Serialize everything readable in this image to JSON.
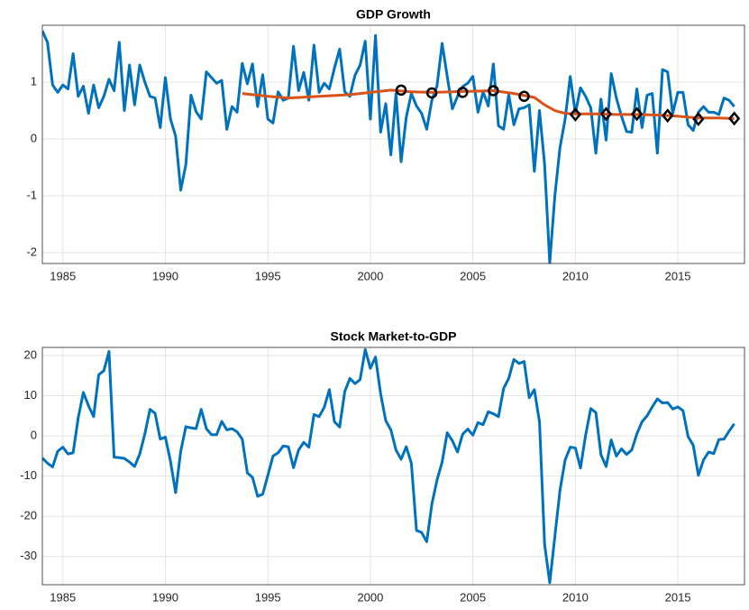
{
  "chart_data": [
    {
      "type": "line",
      "title": "GDP Growth",
      "x": [
        1984,
        1984.25,
        1984.5,
        1984.75,
        1985,
        1985.25,
        1985.5,
        1985.75,
        1986,
        1986.25,
        1986.5,
        1986.75,
        1987,
        1987.25,
        1987.5,
        1987.75,
        1988,
        1988.25,
        1988.5,
        1988.75,
        1989,
        1989.25,
        1989.5,
        1989.75,
        1990,
        1990.25,
        1990.5,
        1990.75,
        1991,
        1991.25,
        1991.5,
        1991.75,
        1992,
        1992.25,
        1992.5,
        1992.75,
        1993,
        1993.25,
        1993.5,
        1993.75,
        1994,
        1994.25,
        1994.5,
        1994.75,
        1995,
        1995.25,
        1995.5,
        1995.75,
        1996,
        1996.25,
        1996.5,
        1996.75,
        1997,
        1997.25,
        1997.5,
        1997.75,
        1998,
        1998.25,
        1998.5,
        1998.75,
        1999,
        1999.25,
        1999.5,
        1999.75,
        2000,
        2000.25,
        2000.5,
        2000.75,
        2001,
        2001.25,
        2001.5,
        2001.75,
        2002,
        2002.25,
        2002.5,
        2002.75,
        2003,
        2003.25,
        2003.5,
        2003.75,
        2004,
        2004.25,
        2004.5,
        2004.75,
        2005,
        2005.25,
        2005.5,
        2005.75,
        2006,
        2006.25,
        2006.5,
        2006.75,
        2007,
        2007.25,
        2007.5,
        2007.75,
        2008,
        2008.25,
        2008.5,
        2008.75,
        2009,
        2009.25,
        2009.5,
        2009.75,
        2010,
        2010.25,
        2010.5,
        2010.75,
        2011,
        2011.25,
        2011.5,
        2011.75,
        2012,
        2012.25,
        2012.5,
        2012.75,
        2013,
        2013.25,
        2013.5,
        2013.75,
        2014,
        2014.25,
        2014.5,
        2014.75,
        2015,
        2015.25,
        2015.5,
        2015.75,
        2016,
        2016.25,
        2016.5,
        2016.75,
        2017,
        2017.25,
        2017.5,
        2017.75
      ],
      "xlim": [
        1984,
        2018.25
      ],
      "xticks": [
        1985,
        1990,
        1995,
        2000,
        2005,
        2010,
        2015
      ],
      "ylim": [
        -2.19,
        2
      ],
      "yticks": [
        -2,
        -1,
        0,
        1
      ],
      "grid": true,
      "series": [
        {
          "color": "#0072bd",
          "style": "line",
          "values": [
            1.9,
            1.7,
            0.95,
            0.82,
            0.95,
            0.88,
            1.5,
            0.75,
            0.93,
            0.45,
            0.95,
            0.55,
            0.75,
            1.05,
            0.85,
            1.7,
            0.5,
            1.3,
            0.6,
            1.3,
            1.0,
            0.75,
            0.72,
            0.2,
            1.08,
            0.35,
            0.05,
            -0.9,
            -0.45,
            0.77,
            0.48,
            0.35,
            1.18,
            1.08,
            0.98,
            1.03,
            0.17,
            0.57,
            0.47,
            1.33,
            0.97,
            1.32,
            0.57,
            1.13,
            0.35,
            0.28,
            0.83,
            0.68,
            0.72,
            1.63,
            0.85,
            1.17,
            0.68,
            1.65,
            0.82,
            0.98,
            0.88,
            1.25,
            1.58,
            0.83,
            0.75,
            1.12,
            1.3,
            1.72,
            0.35,
            1.82,
            0.12,
            0.62,
            -0.28,
            0.8,
            -0.4,
            0.38,
            0.8,
            0.58,
            0.45,
            0.17,
            0.68,
            0.93,
            1.68,
            1.1,
            0.53,
            0.75,
            0.92,
            0.98,
            1.1,
            0.47,
            0.83,
            0.58,
            1.32,
            0.23,
            0.17,
            0.78,
            0.25,
            0.53,
            0.55,
            0.6,
            -0.57,
            0.5,
            -0.45,
            -2.18,
            -1.0,
            -0.15,
            0.35,
            1.1,
            0.45,
            0.9,
            0.75,
            0.55,
            -0.25,
            0.7,
            -0.02,
            1.15,
            0.72,
            0.4,
            0.13,
            0.12,
            0.88,
            0.2,
            0.77,
            0.8,
            -0.25,
            1.22,
            1.18,
            0.45,
            0.82,
            0.82,
            0.25,
            0.15,
            0.47,
            0.57,
            0.47,
            0.47,
            0.43,
            0.72,
            0.68,
            0.57
          ]
        },
        {
          "color": "#d95319",
          "style": "line",
          "x": [
            1993.75,
            1995,
            1996,
            1997,
            1998,
            1999,
            2000,
            2001,
            2002,
            2003,
            2004,
            2005,
            2006,
            2007,
            2008,
            2008.5,
            2009,
            2009.5,
            2010,
            2011,
            2012,
            2013,
            2014,
            2015,
            2016,
            2017,
            2017.75
          ],
          "values": [
            0.8,
            0.75,
            0.72,
            0.74,
            0.76,
            0.78,
            0.82,
            0.86,
            0.83,
            0.82,
            0.83,
            0.84,
            0.85,
            0.8,
            0.73,
            0.6,
            0.5,
            0.45,
            0.44,
            0.44,
            0.43,
            0.43,
            0.42,
            0.4,
            0.37,
            0.37,
            0.36
          ]
        },
        {
          "color": "#000000",
          "style": "circle",
          "x": [
            2001.5,
            2003,
            2004.5,
            2006,
            2007.5
          ],
          "values": [
            0.86,
            0.81,
            0.82,
            0.85,
            0.75
          ]
        },
        {
          "color": "#000000",
          "style": "diamond",
          "x": [
            2010,
            2011.5,
            2013,
            2014.5,
            2016,
            2017.75
          ],
          "values": [
            0.43,
            0.44,
            0.44,
            0.41,
            0.35,
            0.36
          ]
        }
      ]
    },
    {
      "type": "line",
      "title": "Stock Market-to-GDP",
      "x": [
        1984,
        1984.25,
        1984.5,
        1984.75,
        1985,
        1985.25,
        1985.5,
        1985.75,
        1986,
        1986.25,
        1986.5,
        1986.75,
        1987,
        1987.25,
        1987.5,
        1987.75,
        1988,
        1988.25,
        1988.5,
        1988.75,
        1989,
        1989.25,
        1989.5,
        1989.75,
        1990,
        1990.25,
        1990.5,
        1990.75,
        1991,
        1991.25,
        1991.5,
        1991.75,
        1992,
        1992.25,
        1992.5,
        1992.75,
        1993,
        1993.25,
        1993.5,
        1993.75,
        1994,
        1994.25,
        1994.5,
        1994.75,
        1995,
        1995.25,
        1995.5,
        1995.75,
        1996,
        1996.25,
        1996.5,
        1996.75,
        1997,
        1997.25,
        1997.5,
        1997.75,
        1998,
        1998.25,
        1998.5,
        1998.75,
        1999,
        1999.25,
        1999.5,
        1999.75,
        2000,
        2000.25,
        2000.5,
        2000.75,
        2001,
        2001.25,
        2001.5,
        2001.75,
        2002,
        2002.25,
        2002.5,
        2002.75,
        2003,
        2003.25,
        2003.5,
        2003.75,
        2004,
        2004.25,
        2004.5,
        2004.75,
        2005,
        2005.25,
        2005.5,
        2005.75,
        2006,
        2006.25,
        2006.5,
        2006.75,
        2007,
        2007.25,
        2007.5,
        2007.75,
        2008,
        2008.25,
        2008.5,
        2008.75,
        2009,
        2009.25,
        2009.5,
        2009.75,
        2010,
        2010.25,
        2010.5,
        2010.75,
        2011,
        2011.25,
        2011.5,
        2011.75,
        2012,
        2012.25,
        2012.5,
        2012.75,
        2013,
        2013.25,
        2013.5,
        2013.75,
        2014,
        2014.25,
        2014.5,
        2014.75,
        2015,
        2015.25,
        2015.5,
        2015.75,
        2016,
        2016.25,
        2016.5,
        2016.75,
        2017,
        2017.25,
        2017.5,
        2017.75
      ],
      "xlim": [
        1984,
        2018.25
      ],
      "xticks": [
        1985,
        1990,
        1995,
        2000,
        2005,
        2010,
        2015
      ],
      "ylim": [
        -37,
        22
      ],
      "yticks": [
        -30,
        -20,
        -10,
        0,
        10,
        20
      ],
      "grid": true,
      "series": [
        {
          "color": "#0072bd",
          "style": "line",
          "values": [
            -5.5,
            -6.8,
            -7.7,
            -3.8,
            -2.8,
            -4.5,
            -4.2,
            4.5,
            10.8,
            7.5,
            4.8,
            15.2,
            16.2,
            21.0,
            -5.3,
            -5.4,
            -5.6,
            -6.5,
            -7.6,
            -4.5,
            0.5,
            6.6,
            5.6,
            -0.8,
            -0.3,
            -6.3,
            -14.1,
            -3.8,
            2.3,
            2.0,
            1.8,
            6.6,
            1.8,
            0.3,
            0.3,
            3.6,
            1.5,
            1.8,
            1.0,
            -0.8,
            -9.2,
            -10.3,
            -15.0,
            -14.5,
            -9.8,
            -5.0,
            -4.2,
            -2.5,
            -2.7,
            -7.9,
            -3.5,
            -1.6,
            -2.8,
            5.3,
            4.8,
            7.1,
            11.5,
            3.5,
            2.2,
            11.0,
            14.3,
            13.0,
            14.0,
            21.5,
            16.8,
            19.6,
            10.5,
            3.8,
            1.5,
            -3.5,
            -5.8,
            -2.7,
            -6.8,
            -23.5,
            -24.0,
            -26.3,
            -17.0,
            -11.0,
            -6.5,
            0.8,
            -1.2,
            -4.0,
            0.4,
            1.7,
            0.2,
            3.3,
            2.8,
            6.0,
            5.5,
            4.8,
            11.8,
            14.3,
            19.0,
            18.0,
            18.5,
            9.5,
            11.5,
            3.5,
            -27.0,
            -36.5,
            -25.0,
            -13.5,
            -6.0,
            -2.8,
            -3.0,
            -8.0,
            0.2,
            6.8,
            5.8,
            -4.7,
            -7.6,
            -1.0,
            -5.0,
            -3.2,
            -4.6,
            -3.5,
            0.5,
            3.5,
            5.0,
            7.2,
            9.2,
            8.2,
            8.3,
            6.7,
            7.2,
            6.3,
            -0.2,
            -2.3,
            -9.8,
            -6.0,
            -4.0,
            -4.4,
            -0.9,
            -0.8,
            1.2,
            3.0
          ]
        }
      ]
    }
  ]
}
